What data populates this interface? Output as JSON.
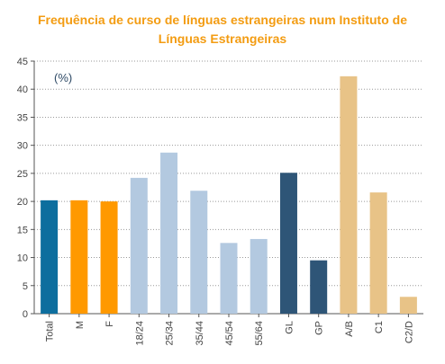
{
  "chart_data": {
    "type": "bar",
    "title_line1": "Frequência de curso de línguas estrangeiras num Instituto de",
    "title_line2": "Línguas Estrangeiras",
    "unit_label": "(%)",
    "ylim": [
      0,
      45
    ],
    "yticks": [
      0,
      5,
      10,
      15,
      20,
      25,
      30,
      35,
      40,
      45
    ],
    "grid": true,
    "categories": [
      "Total",
      "M",
      "F",
      "18/24",
      "25/34",
      "35/44",
      "45/54",
      "55/64",
      "GL",
      "GP",
      "A/B",
      "C1",
      "C2/D"
    ],
    "values": [
      20.2,
      20.2,
      20.0,
      24.2,
      28.7,
      21.9,
      12.6,
      13.3,
      25.1,
      9.5,
      42.3,
      21.6,
      3.0
    ],
    "colors": [
      "#0d6e9e",
      "#ff9900",
      "#ff9900",
      "#b3c9e0",
      "#b3c9e0",
      "#b3c9e0",
      "#b3c9e0",
      "#b3c9e0",
      "#2e5577",
      "#2e5577",
      "#e8c387",
      "#e8c387",
      "#e8c387"
    ]
  }
}
